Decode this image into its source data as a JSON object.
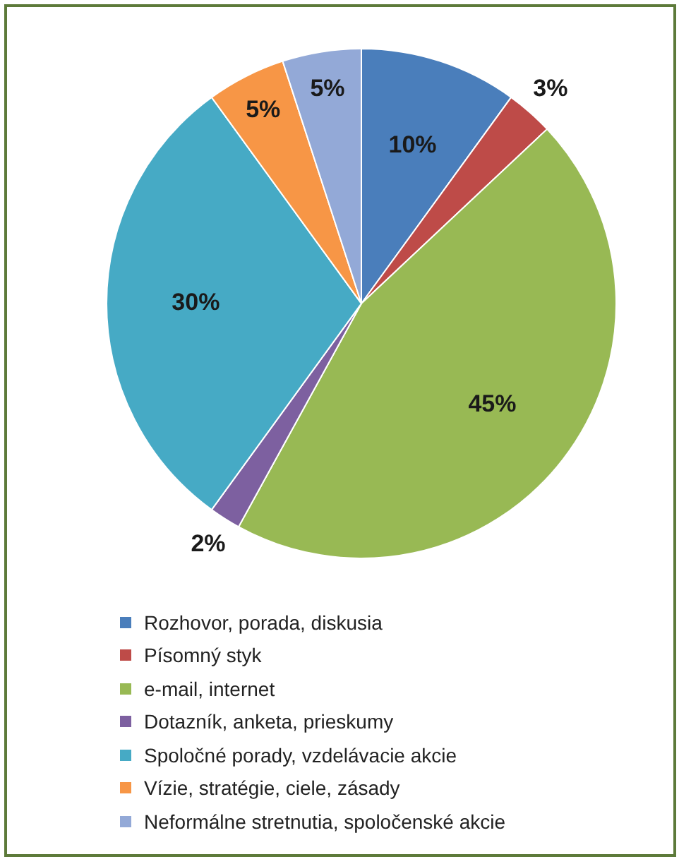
{
  "chart_data": {
    "type": "pie",
    "categories": [
      "Rozhovor, porada, diskusia",
      "Písomný styk",
      "e-mail, internet",
      "Dotazník, anketa, prieskumy",
      "Spoločné porady, vzdelávacie akcie",
      "Vízie, stratégie, ciele, zásady",
      "Neformálne stretnutia, spoločenské akcie"
    ],
    "values": [
      10,
      3,
      45,
      2,
      30,
      5,
      5
    ],
    "value_labels": [
      "10%",
      "3%",
      "45%",
      "2%",
      "30%",
      "5%",
      "5%"
    ],
    "colors": [
      "#4a7ebb",
      "#be4b48",
      "#98b954",
      "#7d60a0",
      "#46aac5",
      "#f79646",
      "#93a9d7"
    ],
    "legend": "bottom"
  }
}
